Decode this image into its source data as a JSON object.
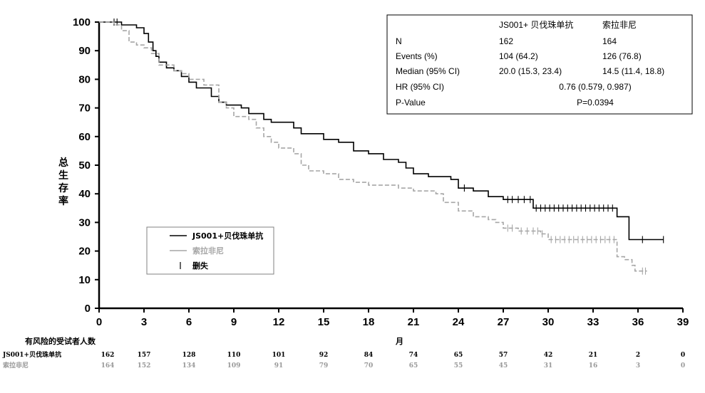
{
  "chart_data": {
    "type": "line",
    "subtype": "kaplan-meier",
    "ylabel": [
      "总",
      "生",
      "存",
      "率"
    ],
    "xlabel": "月",
    "xlim": [
      0,
      39
    ],
    "ylim": [
      0,
      100
    ],
    "xticks": [
      0,
      3,
      6,
      9,
      12,
      15,
      18,
      21,
      24,
      27,
      30,
      33,
      36,
      39
    ],
    "yticks": [
      0,
      10,
      20,
      30,
      40,
      50,
      60,
      70,
      80,
      90,
      100
    ],
    "series": [
      {
        "name": "JS001+贝伐珠单抗",
        "color": "#000000",
        "dashed": false,
        "points": [
          [
            0,
            100
          ],
          [
            1.5,
            99
          ],
          [
            2.5,
            98
          ],
          [
            3.0,
            96
          ],
          [
            3.3,
            93
          ],
          [
            3.6,
            90
          ],
          [
            3.8,
            88
          ],
          [
            4.0,
            86
          ],
          [
            4.5,
            84
          ],
          [
            5.0,
            83
          ],
          [
            5.5,
            81
          ],
          [
            6.0,
            79
          ],
          [
            6.5,
            77
          ],
          [
            7.5,
            74
          ],
          [
            8.0,
            72
          ],
          [
            8.5,
            71
          ],
          [
            9.5,
            70
          ],
          [
            10.0,
            68
          ],
          [
            11.0,
            66
          ],
          [
            11.5,
            65
          ],
          [
            13.0,
            63
          ],
          [
            13.5,
            61
          ],
          [
            15.0,
            59
          ],
          [
            16.0,
            58
          ],
          [
            17.0,
            55
          ],
          [
            18.0,
            54
          ],
          [
            19.0,
            52
          ],
          [
            20.0,
            51
          ],
          [
            20.5,
            49
          ],
          [
            21.0,
            47
          ],
          [
            22.0,
            46
          ],
          [
            23.5,
            45
          ],
          [
            24.0,
            42
          ],
          [
            25.0,
            41
          ],
          [
            26.0,
            39
          ],
          [
            27.0,
            38
          ],
          [
            29.0,
            35
          ],
          [
            34.5,
            35
          ],
          [
            34.6,
            32
          ],
          [
            35.3,
            32
          ],
          [
            35.4,
            24
          ],
          [
            37.7,
            24
          ]
        ],
        "censor_times": [
          1.0,
          1.2,
          24.4,
          27.3,
          27.6,
          28.0,
          28.4,
          28.8,
          29.2,
          29.5,
          29.8,
          30.1,
          30.4,
          30.7,
          31.0,
          31.3,
          31.6,
          31.9,
          32.2,
          32.5,
          32.8,
          33.1,
          33.4,
          33.7,
          34.0,
          34.3,
          36.3,
          37.7
        ]
      },
      {
        "name": "索拉非尼",
        "color": "#a6a6a6",
        "dashed": true,
        "points": [
          [
            0,
            100
          ],
          [
            1.0,
            99
          ],
          [
            1.5,
            97
          ],
          [
            2.0,
            93
          ],
          [
            2.5,
            92
          ],
          [
            3.0,
            91
          ],
          [
            3.5,
            89
          ],
          [
            4.0,
            85
          ],
          [
            5.0,
            83
          ],
          [
            5.5,
            82
          ],
          [
            6.0,
            80
          ],
          [
            7.0,
            78
          ],
          [
            8.0,
            72
          ],
          [
            8.5,
            70
          ],
          [
            9.0,
            67
          ],
          [
            10.0,
            66
          ],
          [
            10.5,
            63
          ],
          [
            11.0,
            60
          ],
          [
            11.5,
            58
          ],
          [
            12.0,
            56
          ],
          [
            13.0,
            54
          ],
          [
            13.5,
            50
          ],
          [
            14.0,
            48
          ],
          [
            15.0,
            47
          ],
          [
            16.0,
            45
          ],
          [
            17.0,
            44
          ],
          [
            18.0,
            43
          ],
          [
            20.0,
            42
          ],
          [
            21.0,
            41
          ],
          [
            22.5,
            40
          ],
          [
            23.0,
            37
          ],
          [
            24.0,
            34
          ],
          [
            25.0,
            32
          ],
          [
            26.0,
            31
          ],
          [
            26.5,
            30
          ],
          [
            27.0,
            28
          ],
          [
            28.0,
            27
          ],
          [
            29.5,
            26
          ],
          [
            30.0,
            24
          ],
          [
            34.5,
            24
          ],
          [
            34.6,
            18
          ],
          [
            35.1,
            17
          ],
          [
            35.6,
            15
          ],
          [
            35.8,
            13
          ],
          [
            36.6,
            13
          ]
        ],
        "censor_times": [
          27.3,
          27.6,
          28.2,
          28.6,
          29.0,
          29.3,
          29.6,
          30.2,
          30.5,
          30.8,
          31.1,
          31.4,
          31.7,
          32.0,
          32.3,
          32.6,
          32.9,
          33.2,
          33.5,
          33.8,
          34.1,
          34.4,
          36.3,
          36.5
        ]
      }
    ],
    "legend": {
      "position": "lower-left",
      "entries": [
        "JS001+贝伐珠单抗",
        "索拉非尼",
        "删失"
      ]
    },
    "stats_table": {
      "position": "top-right",
      "headers": [
        "",
        "JS001+ 贝伐珠单抗",
        "索拉非尼"
      ],
      "rows": [
        [
          "N",
          "162",
          "164"
        ],
        [
          "Events (%)",
          "104 (64.2)",
          "126 (76.8)"
        ],
        [
          "Median (95% CI)",
          "20.0 (15.3, 23.4)",
          "14.5 (11.4, 18.8)"
        ]
      ],
      "merged_rows": [
        [
          "HR (95% CI)",
          "0.76 (0.579, 0.987)"
        ],
        [
          "P-Value",
          "P=0.0394"
        ]
      ]
    },
    "risk_table": {
      "title": "有风险的受试者人数",
      "times": [
        0,
        3,
        6,
        9,
        12,
        15,
        18,
        21,
        24,
        27,
        30,
        33,
        36,
        39
      ],
      "rows": [
        {
          "label": "JS001+贝伐珠单抗",
          "color": "#000000",
          "values": [
            "162",
            "157",
            "128",
            "110",
            "101",
            "92",
            "84",
            "74",
            "65",
            "57",
            "42",
            "21",
            "2",
            "0"
          ]
        },
        {
          "label": "索拉非尼",
          "color": "#999999",
          "values": [
            "164",
            "152",
            "134",
            "109",
            "91",
            "79",
            "70",
            "65",
            "55",
            "45",
            "31",
            "16",
            "3",
            "0"
          ]
        }
      ]
    }
  }
}
